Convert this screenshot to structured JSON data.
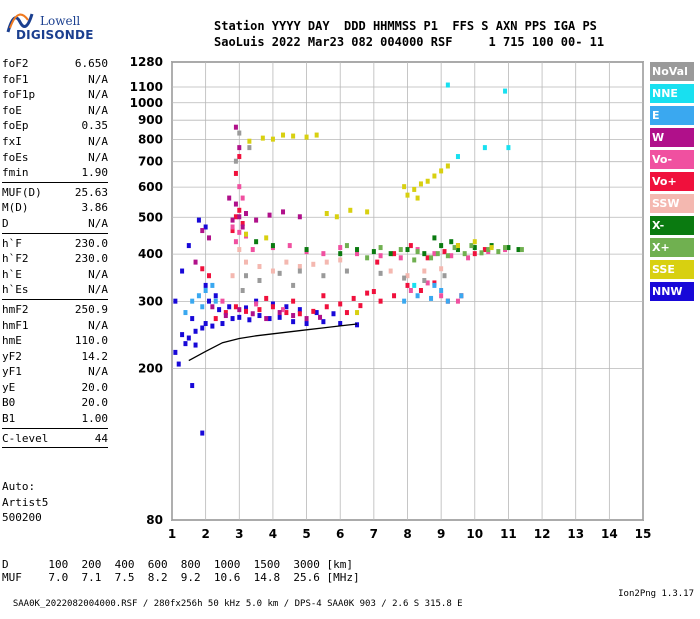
{
  "logo": {
    "line1": "Lowell",
    "line2": "DIGISONDE"
  },
  "header": {
    "line1": "Station YYYY DAY  DDD HHMMSS P1  FFS S AXN PPS IGA PS",
    "line2": "SaoLuis 2022 Mar23 082 004000 RSF     1 715 100 00- 11"
  },
  "params": [
    {
      "name": "foF2",
      "value": "6.650"
    },
    {
      "name": "foF1",
      "value": "N/A"
    },
    {
      "name": "foF1p",
      "value": "N/A"
    },
    {
      "name": "foE",
      "value": "N/A"
    },
    {
      "name": "foEp",
      "value": "0.35"
    },
    {
      "name": "fxI",
      "value": "N/A"
    },
    {
      "name": "foEs",
      "value": "N/A"
    },
    {
      "name": "fmin",
      "value": "1.90"
    },
    {
      "sep": true
    },
    {
      "name": "MUF(D)",
      "value": "25.63"
    },
    {
      "name": "M(D)",
      "value": "3.86"
    },
    {
      "name": "D",
      "value": "N/A"
    },
    {
      "sep": true
    },
    {
      "name": "h`F",
      "value": "230.0"
    },
    {
      "name": "h`F2",
      "value": "230.0"
    },
    {
      "name": "h`E",
      "value": "N/A"
    },
    {
      "name": "h`Es",
      "value": "N/A"
    },
    {
      "sep": true
    },
    {
      "name": "hmF2",
      "value": "250.9"
    },
    {
      "name": "hmF1",
      "value": "N/A"
    },
    {
      "name": "hmE",
      "value": "110.0"
    },
    {
      "name": "yF2",
      "value": "14.2"
    },
    {
      "name": "yF1",
      "value": "N/A"
    },
    {
      "name": "yE",
      "value": "20.0"
    },
    {
      "name": "B0",
      "value": "20.0"
    },
    {
      "name": "B1",
      "value": "1.00"
    },
    {
      "sep": true
    },
    {
      "name": "C-level",
      "value": "44"
    },
    {
      "sep": true
    }
  ],
  "auto_text": [
    "Auto:",
    "Artist5",
    "500200"
  ],
  "legend": [
    {
      "label": "NoVal",
      "color": "#9a9a9a"
    },
    {
      "label": "NNE",
      "color": "#18e0f0"
    },
    {
      "label": "E",
      "color": "#3aa8f0"
    },
    {
      "label": "W",
      "color": "#b0108a"
    },
    {
      "label": "Vo-",
      "color": "#f050a0"
    },
    {
      "label": "Vo+",
      "color": "#f0103c"
    },
    {
      "label": "SSW",
      "color": "#f4b8b0"
    },
    {
      "label": "X-",
      "color": "#0a7a10"
    },
    {
      "label": "X+",
      "color": "#70b050"
    },
    {
      "label": "SSE",
      "color": "#d8d010"
    },
    {
      "label": "NNW",
      "color": "#1808d8"
    }
  ],
  "muf_table": {
    "d_label": "D",
    "d_values": [
      "100",
      "200",
      "400",
      "600",
      "800",
      "1000",
      "1500",
      "3000"
    ],
    "d_unit": "[km]",
    "muf_label": "MUF",
    "muf_values": [
      "7.0",
      "7.1",
      "7.5",
      "8.2",
      "9.2",
      "10.6",
      "14.8",
      "25.6"
    ],
    "muf_unit": "[MHz]"
  },
  "footer": {
    "left": "SAA0K_2022082004000.RSF / 280fx256h 50 kHz 5.0 km / DPS-4 SAA0K 903 / 2.6 S 315.8 E",
    "right": "Ion2Png 1.3.17"
  },
  "chart_data": {
    "type": "scatter",
    "title": "",
    "xlabel": "",
    "ylabel": "",
    "x_unit": "MHz",
    "y_unit": "km",
    "xlim": [
      1,
      15
    ],
    "ylim": [
      80,
      1280
    ],
    "y_scale": "log",
    "grid": true,
    "x_ticks": [
      1,
      2,
      3,
      4,
      5,
      6,
      7,
      8,
      9,
      10,
      11,
      12,
      13,
      14,
      15
    ],
    "y_ticks": [
      80,
      200,
      300,
      400,
      500,
      600,
      700,
      800,
      900,
      1000,
      1100,
      1280
    ],
    "legend_position": "right",
    "series": [
      {
        "name": "NNW",
        "points": [
          [
            1.1,
            220
          ],
          [
            1.3,
            245
          ],
          [
            1.5,
            240
          ],
          [
            1.7,
            250
          ],
          [
            1.9,
            255
          ],
          [
            2.0,
            262
          ],
          [
            2.2,
            258
          ],
          [
            2.5,
            262
          ],
          [
            2.8,
            270
          ],
          [
            3.0,
            272
          ],
          [
            3.3,
            268
          ],
          [
            3.6,
            275
          ],
          [
            3.9,
            270
          ],
          [
            4.2,
            272
          ],
          [
            4.6,
            265
          ],
          [
            5.0,
            262
          ],
          [
            5.5,
            265
          ],
          [
            6.0,
            262
          ],
          [
            6.5,
            260
          ],
          [
            2.1,
            300
          ],
          [
            2.3,
            310
          ],
          [
            2.0,
            330
          ],
          [
            1.6,
            270
          ],
          [
            1.4,
            232
          ],
          [
            1.2,
            205
          ],
          [
            1.9,
            135
          ],
          [
            1.7,
            230
          ],
          [
            2.4,
            285
          ],
          [
            2.7,
            290
          ],
          [
            3.2,
            288
          ],
          [
            3.5,
            300
          ],
          [
            4.0,
            295
          ],
          [
            4.4,
            290
          ],
          [
            4.8,
            285
          ],
          [
            5.3,
            280
          ],
          [
            5.8,
            278
          ],
          [
            1.8,
            490
          ],
          [
            2.0,
            470
          ],
          [
            1.5,
            420
          ],
          [
            1.3,
            360
          ],
          [
            1.1,
            300
          ],
          [
            1.6,
            180
          ]
        ]
      },
      {
        "name": "Vo+",
        "points": [
          [
            2.3,
            270
          ],
          [
            2.6,
            280
          ],
          [
            2.9,
            290
          ],
          [
            3.2,
            282
          ],
          [
            3.6,
            285
          ],
          [
            4.0,
            290
          ],
          [
            4.4,
            280
          ],
          [
            4.8,
            278
          ],
          [
            5.2,
            282
          ],
          [
            5.6,
            290
          ],
          [
            6.0,
            295
          ],
          [
            6.4,
            305
          ],
          [
            6.8,
            315
          ],
          [
            7.2,
            300
          ],
          [
            7.6,
            310
          ],
          [
            8.0,
            330
          ],
          [
            8.4,
            320
          ],
          [
            8.8,
            335
          ],
          [
            9.2,
            300
          ],
          [
            9.6,
            310
          ],
          [
            2.9,
            500
          ],
          [
            3.1,
            480
          ],
          [
            2.8,
            460
          ],
          [
            3.0,
            520
          ],
          [
            2.9,
            650
          ],
          [
            3.0,
            720
          ],
          [
            7.1,
            380
          ],
          [
            7.6,
            400
          ],
          [
            8.1,
            420
          ],
          [
            8.6,
            390
          ],
          [
            9.1,
            405
          ],
          [
            9.5,
            420
          ],
          [
            10.0,
            400
          ],
          [
            10.3,
            410
          ],
          [
            5.5,
            310
          ],
          [
            4.6,
            300
          ],
          [
            3.8,
            305
          ],
          [
            6.2,
            280
          ],
          [
            6.6,
            292
          ],
          [
            7.0,
            318
          ],
          [
            1.9,
            365
          ],
          [
            2.1,
            350
          ]
        ]
      },
      {
        "name": "Vo-",
        "points": [
          [
            2.8,
            470
          ],
          [
            3.0,
            455
          ],
          [
            3.2,
            445
          ],
          [
            2.9,
            430
          ],
          [
            3.1,
            560
          ],
          [
            3.0,
            600
          ],
          [
            3.4,
            410
          ],
          [
            4.0,
            415
          ],
          [
            4.5,
            420
          ],
          [
            5.0,
            405
          ],
          [
            5.5,
            400
          ],
          [
            6.0,
            415
          ],
          [
            6.5,
            400
          ],
          [
            7.2,
            395
          ],
          [
            7.8,
            390
          ],
          [
            8.3,
            410
          ],
          [
            8.8,
            400
          ],
          [
            9.3,
            395
          ],
          [
            9.8,
            390
          ],
          [
            10.4,
            405
          ],
          [
            10.9,
            410
          ],
          [
            8.1,
            320
          ],
          [
            8.6,
            335
          ],
          [
            9.0,
            310
          ],
          [
            9.5,
            300
          ],
          [
            2.5,
            300
          ],
          [
            3.5,
            295
          ],
          [
            4.3,
            285
          ]
        ]
      },
      {
        "name": "W",
        "points": [
          [
            2.8,
            490
          ],
          [
            3.0,
            500
          ],
          [
            3.2,
            510
          ],
          [
            3.5,
            490
          ],
          [
            3.9,
            505
          ],
          [
            4.3,
            515
          ],
          [
            4.8,
            500
          ],
          [
            2.9,
            540
          ],
          [
            3.1,
            470
          ],
          [
            2.9,
            860
          ],
          [
            3.0,
            760
          ],
          [
            2.7,
            560
          ],
          [
            1.9,
            460
          ],
          [
            2.1,
            440
          ],
          [
            1.7,
            380
          ],
          [
            2.2,
            290
          ],
          [
            2.6,
            275
          ],
          [
            3.0,
            285
          ],
          [
            3.4,
            278
          ],
          [
            3.8,
            270
          ],
          [
            4.2,
            280
          ],
          [
            4.6,
            275
          ],
          [
            5.0,
            270
          ],
          [
            5.4,
            272
          ]
        ]
      },
      {
        "name": "E",
        "points": [
          [
            1.6,
            300
          ],
          [
            1.8,
            310
          ],
          [
            2.0,
            320
          ],
          [
            2.2,
            330
          ],
          [
            1.4,
            280
          ],
          [
            7.9,
            300
          ],
          [
            8.3,
            310
          ],
          [
            8.7,
            305
          ],
          [
            9.2,
            300
          ],
          [
            9.6,
            310
          ],
          [
            8.8,
            330
          ],
          [
            9.0,
            320
          ],
          [
            1.9,
            290
          ],
          [
            2.3,
            300
          ]
        ]
      },
      {
        "name": "NNE",
        "points": [
          [
            9.2,
            1110
          ],
          [
            10.3,
            760
          ],
          [
            11.0,
            760
          ],
          [
            9.5,
            720
          ],
          [
            10.9,
            1070
          ],
          [
            8.2,
            330
          ]
        ]
      },
      {
        "name": "X-",
        "points": [
          [
            8.0,
            410
          ],
          [
            8.5,
            400
          ],
          [
            9.0,
            420
          ],
          [
            9.5,
            410
          ],
          [
            10.0,
            415
          ],
          [
            10.5,
            420
          ],
          [
            11.0,
            415
          ],
          [
            11.3,
            410
          ],
          [
            7.5,
            400
          ],
          [
            7.0,
            405
          ],
          [
            6.5,
            410
          ],
          [
            6.0,
            400
          ],
          [
            5.0,
            410
          ],
          [
            4.0,
            420
          ],
          [
            3.5,
            430
          ],
          [
            8.8,
            440
          ],
          [
            9.3,
            430
          ]
        ]
      },
      {
        "name": "X+",
        "points": [
          [
            7.8,
            410
          ],
          [
            8.3,
            405
          ],
          [
            8.9,
            400
          ],
          [
            9.4,
            415
          ],
          [
            9.9,
            420
          ],
          [
            10.4,
            410
          ],
          [
            10.9,
            415
          ],
          [
            11.4,
            410
          ],
          [
            8.2,
            385
          ],
          [
            8.7,
            390
          ],
          [
            9.2,
            395
          ],
          [
            9.7,
            400
          ],
          [
            10.2,
            402
          ],
          [
            10.7,
            405
          ],
          [
            7.2,
            415
          ],
          [
            6.8,
            390
          ],
          [
            6.2,
            420
          ]
        ]
      },
      {
        "name": "SSE",
        "points": [
          [
            8.0,
            570
          ],
          [
            8.2,
            590
          ],
          [
            8.4,
            610
          ],
          [
            8.6,
            620
          ],
          [
            8.8,
            640
          ],
          [
            9.0,
            660
          ],
          [
            9.2,
            680
          ],
          [
            8.3,
            560
          ],
          [
            7.9,
            600
          ],
          [
            4.3,
            820
          ],
          [
            4.6,
            815
          ],
          [
            5.0,
            810
          ],
          [
            5.3,
            820
          ],
          [
            4.0,
            800
          ],
          [
            3.7,
            805
          ],
          [
            3.3,
            790
          ],
          [
            5.6,
            510
          ],
          [
            6.3,
            520
          ],
          [
            6.8,
            515
          ],
          [
            5.9,
            500
          ],
          [
            9.5,
            420
          ],
          [
            10.0,
            430
          ],
          [
            10.5,
            415
          ],
          [
            3.8,
            440
          ],
          [
            3.2,
            450
          ],
          [
            6.5,
            280
          ]
        ]
      },
      {
        "name": "SSW",
        "points": [
          [
            3.2,
            380
          ],
          [
            3.6,
            370
          ],
          [
            4.0,
            360
          ],
          [
            4.4,
            380
          ],
          [
            4.8,
            370
          ],
          [
            5.2,
            375
          ],
          [
            5.6,
            380
          ],
          [
            6.0,
            385
          ],
          [
            3.0,
            410
          ],
          [
            2.8,
            350
          ],
          [
            7.5,
            360
          ],
          [
            8.0,
            350
          ],
          [
            8.5,
            360
          ],
          [
            9.0,
            365
          ]
        ]
      },
      {
        "name": "NoVal",
        "points": [
          [
            3.2,
            350
          ],
          [
            3.6,
            340
          ],
          [
            4.2,
            355
          ],
          [
            4.8,
            360
          ],
          [
            5.5,
            350
          ],
          [
            6.2,
            360
          ],
          [
            7.2,
            355
          ],
          [
            7.9,
            345
          ],
          [
            8.5,
            340
          ],
          [
            9.1,
            350
          ],
          [
            3.0,
            830
          ],
          [
            2.9,
            700
          ],
          [
            3.3,
            760
          ],
          [
            3.1,
            320
          ],
          [
            4.6,
            330
          ]
        ]
      }
    ],
    "trace": {
      "name": "virtual height trace",
      "points": [
        [
          1.5,
          210
        ],
        [
          2.0,
          222
        ],
        [
          2.5,
          234
        ],
        [
          3.0,
          240
        ],
        [
          3.5,
          244
        ],
        [
          4.0,
          247
        ],
        [
          4.5,
          250
        ],
        [
          5.0,
          253
        ],
        [
          5.5,
          256
        ],
        [
          6.0,
          259
        ],
        [
          6.5,
          262
        ]
      ]
    }
  }
}
